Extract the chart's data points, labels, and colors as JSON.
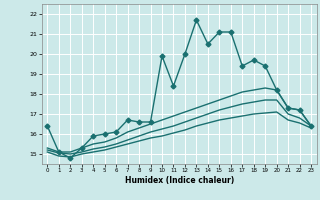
{
  "xlabel": "Humidex (Indice chaleur)",
  "background_color": "#cce9e9",
  "grid_color": "#ffffff",
  "line_color": "#1a7070",
  "xlim": [
    -0.5,
    23.5
  ],
  "ylim": [
    14.5,
    22.5
  ],
  "yticks": [
    15,
    16,
    17,
    18,
    19,
    20,
    21,
    22
  ],
  "xticks": [
    0,
    1,
    2,
    3,
    4,
    5,
    6,
    7,
    8,
    9,
    10,
    11,
    12,
    13,
    14,
    15,
    16,
    17,
    18,
    19,
    20,
    21,
    22,
    23
  ],
  "series": [
    {
      "x": [
        0,
        1,
        2,
        3,
        4,
        5,
        6,
        7,
        8,
        9,
        10,
        11,
        12,
        13,
        14,
        15,
        16,
        17,
        18,
        19,
        20,
        21,
        22,
        23
      ],
      "y": [
        16.4,
        15.1,
        14.8,
        15.3,
        15.9,
        16.0,
        16.1,
        16.7,
        16.6,
        16.6,
        19.9,
        18.4,
        20.0,
        21.7,
        20.5,
        21.1,
        21.1,
        19.4,
        19.7,
        19.4,
        18.2,
        17.3,
        17.2,
        16.4
      ],
      "marker": "D",
      "markersize": 2.5,
      "linewidth": 1.0
    },
    {
      "x": [
        0,
        1,
        2,
        3,
        4,
        5,
        6,
        7,
        8,
        9,
        10,
        11,
        12,
        13,
        14,
        15,
        16,
        17,
        18,
        19,
        20,
        21,
        22,
        23
      ],
      "y": [
        15.3,
        15.1,
        15.1,
        15.3,
        15.5,
        15.6,
        15.8,
        16.1,
        16.3,
        16.5,
        16.7,
        16.9,
        17.1,
        17.3,
        17.5,
        17.7,
        17.9,
        18.1,
        18.2,
        18.3,
        18.2,
        17.3,
        17.2,
        16.4
      ],
      "marker": null,
      "linewidth": 1.0
    },
    {
      "x": [
        0,
        1,
        2,
        3,
        4,
        5,
        6,
        7,
        8,
        9,
        10,
        11,
        12,
        13,
        14,
        15,
        16,
        17,
        18,
        19,
        20,
        21,
        22,
        23
      ],
      "y": [
        15.2,
        15.05,
        15.0,
        15.1,
        15.25,
        15.35,
        15.5,
        15.7,
        15.9,
        16.1,
        16.25,
        16.4,
        16.6,
        16.8,
        17.0,
        17.2,
        17.35,
        17.5,
        17.6,
        17.7,
        17.7,
        17.0,
        16.8,
        16.4
      ],
      "marker": null,
      "linewidth": 1.0
    },
    {
      "x": [
        0,
        1,
        2,
        3,
        4,
        5,
        6,
        7,
        8,
        9,
        10,
        11,
        12,
        13,
        14,
        15,
        16,
        17,
        18,
        19,
        20,
        21,
        22,
        23
      ],
      "y": [
        15.1,
        14.9,
        14.85,
        15.0,
        15.1,
        15.2,
        15.35,
        15.5,
        15.65,
        15.8,
        15.9,
        16.05,
        16.2,
        16.4,
        16.55,
        16.7,
        16.8,
        16.9,
        17.0,
        17.05,
        17.1,
        16.7,
        16.55,
        16.3
      ],
      "marker": null,
      "linewidth": 1.0
    }
  ]
}
